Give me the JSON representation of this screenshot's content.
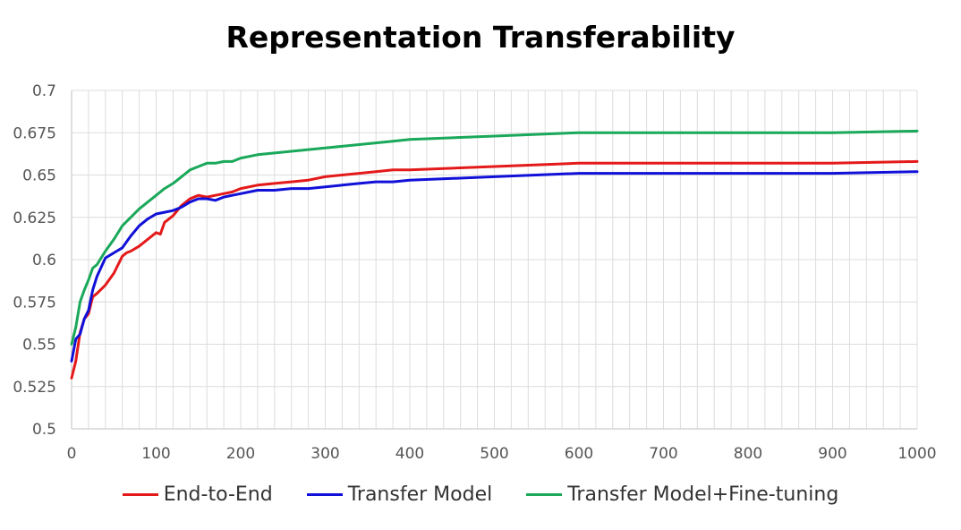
{
  "chart_data": {
    "type": "line",
    "title": "Representation Transferability",
    "xlabel": "",
    "ylabel": "",
    "xlim": [
      0,
      1000
    ],
    "ylim": [
      0.5,
      0.7
    ],
    "xticks": [
      0,
      100,
      200,
      300,
      400,
      500,
      600,
      700,
      800,
      900,
      1000
    ],
    "yticks": [
      0.5,
      0.525,
      0.55,
      0.575,
      0.6,
      0.625,
      0.65,
      0.675,
      0.7
    ],
    "ytick_labels": [
      "0.5",
      "0.525",
      "0.55",
      "0.575",
      "0.6",
      "0.625",
      "0.65",
      "0.675",
      "0.7"
    ],
    "grid": true,
    "legend_position": "bottom",
    "series": [
      {
        "name": "End-to-End",
        "color": "#e41a1a",
        "x": [
          0,
          5,
          10,
          15,
          20,
          25,
          30,
          40,
          50,
          60,
          65,
          70,
          80,
          90,
          100,
          105,
          110,
          120,
          130,
          140,
          150,
          160,
          170,
          180,
          190,
          200,
          220,
          240,
          260,
          280,
          300,
          320,
          340,
          360,
          380,
          400,
          500,
          600,
          700,
          800,
          900,
          1000
        ],
        "y": [
          0.53,
          0.54,
          0.557,
          0.565,
          0.568,
          0.578,
          0.58,
          0.585,
          0.592,
          0.602,
          0.604,
          0.605,
          0.608,
          0.612,
          0.616,
          0.615,
          0.622,
          0.626,
          0.632,
          0.636,
          0.638,
          0.637,
          0.638,
          0.639,
          0.64,
          0.642,
          0.644,
          0.645,
          0.646,
          0.647,
          0.649,
          0.65,
          0.651,
          0.652,
          0.653,
          0.653,
          0.655,
          0.657,
          0.657,
          0.657,
          0.657,
          0.658
        ]
      },
      {
        "name": "Transfer Model",
        "color": "#1010d8",
        "x": [
          0,
          5,
          10,
          15,
          20,
          25,
          30,
          40,
          50,
          60,
          70,
          80,
          90,
          100,
          110,
          120,
          130,
          140,
          150,
          160,
          170,
          180,
          190,
          200,
          220,
          240,
          260,
          280,
          300,
          320,
          340,
          360,
          380,
          400,
          500,
          600,
          700,
          800,
          900,
          1000
        ],
        "y": [
          0.54,
          0.553,
          0.556,
          0.565,
          0.57,
          0.582,
          0.59,
          0.601,
          0.604,
          0.607,
          0.614,
          0.62,
          0.624,
          0.627,
          0.628,
          0.629,
          0.631,
          0.634,
          0.636,
          0.636,
          0.635,
          0.637,
          0.638,
          0.639,
          0.641,
          0.641,
          0.642,
          0.642,
          0.643,
          0.644,
          0.645,
          0.646,
          0.646,
          0.647,
          0.649,
          0.651,
          0.651,
          0.651,
          0.651,
          0.652
        ]
      },
      {
        "name": "Transfer Model+Fine-tuning",
        "color": "#1aa85a",
        "x": [
          0,
          5,
          10,
          15,
          20,
          25,
          30,
          40,
          50,
          60,
          70,
          80,
          90,
          100,
          110,
          120,
          130,
          140,
          150,
          160,
          170,
          180,
          190,
          200,
          220,
          240,
          260,
          280,
          300,
          320,
          340,
          360,
          380,
          400,
          500,
          600,
          700,
          800,
          900,
          1000
        ],
        "y": [
          0.55,
          0.56,
          0.575,
          0.582,
          0.588,
          0.595,
          0.597,
          0.605,
          0.612,
          0.62,
          0.625,
          0.63,
          0.634,
          0.638,
          0.642,
          0.645,
          0.649,
          0.653,
          0.655,
          0.657,
          0.657,
          0.658,
          0.658,
          0.66,
          0.662,
          0.663,
          0.664,
          0.665,
          0.666,
          0.667,
          0.668,
          0.669,
          0.67,
          0.671,
          0.673,
          0.675,
          0.675,
          0.675,
          0.675,
          0.676
        ]
      }
    ]
  }
}
